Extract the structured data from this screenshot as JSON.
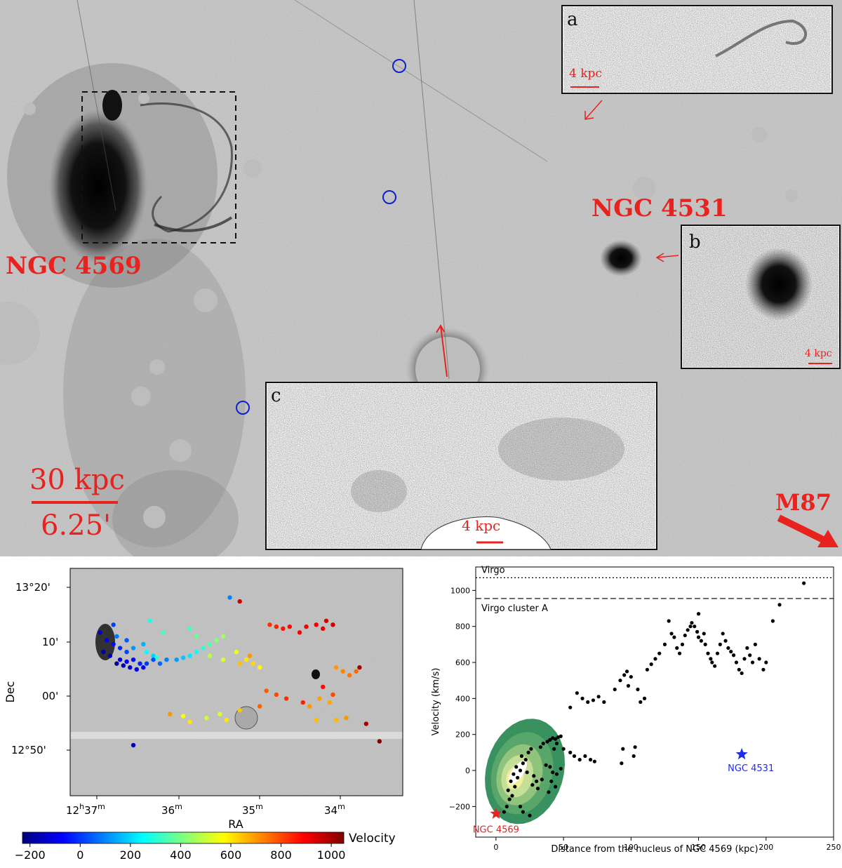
{
  "panel_top": {
    "galaxy_labels": [
      "NGC 4569",
      "NGC 4531"
    ],
    "scale_kpc": "30 kpc",
    "scale_arcmin": "6.25'",
    "direction_label": "M87",
    "inset_a": {
      "letter": "a",
      "scale": "4 kpc"
    },
    "inset_b": {
      "letter": "b",
      "scale": "4 kpc"
    },
    "inset_c": {
      "letter": "c",
      "scale": "4 kpc"
    }
  },
  "chart_data": [
    {
      "type": "scatter",
      "xlabel": "RA",
      "ylabel": "Dec",
      "xticks": [
        {
          "main": "12",
          "sup": "h",
          "sub": "37",
          "sup2": "m"
        },
        "36m",
        "35m",
        "34m"
      ],
      "yticks": [
        "13°20'",
        "10'",
        "00'",
        "12°50'"
      ],
      "colorbar": {
        "label": "Velocity",
        "ticks": [
          "−200",
          "0",
          "200",
          "400",
          "600",
          "800",
          "1000"
        ],
        "range": [
          -230,
          1050
        ]
      },
      "points": [
        [
          12.607,
          13.23,
          10
        ],
        [
          12.603,
          13.19,
          40
        ],
        [
          12.606,
          13.2,
          80
        ],
        [
          12.601,
          13.17,
          120
        ],
        [
          12.598,
          13.18,
          150
        ],
        [
          12.595,
          13.15,
          200
        ],
        [
          12.597,
          13.16,
          250
        ],
        [
          12.594,
          13.145,
          300
        ],
        [
          12.592,
          13.21,
          330
        ],
        [
          12.596,
          13.24,
          280
        ],
        [
          12.61,
          13.16,
          -180
        ],
        [
          12.608,
          13.15,
          -150
        ],
        [
          12.605,
          13.14,
          -120
        ],
        [
          12.603,
          13.135,
          -90
        ],
        [
          12.601,
          13.14,
          -60
        ],
        [
          12.599,
          13.13,
          -30
        ],
        [
          12.597,
          13.13,
          0
        ],
        [
          12.595,
          13.14,
          30
        ],
        [
          12.593,
          13.13,
          60
        ],
        [
          12.591,
          13.14,
          90
        ],
        [
          12.606,
          13.13,
          -200
        ],
        [
          12.604,
          13.125,
          -170
        ],
        [
          12.602,
          13.12,
          -140
        ],
        [
          12.6,
          13.115,
          -100
        ],
        [
          12.598,
          13.12,
          -70
        ],
        [
          12.611,
          13.21,
          -150
        ],
        [
          12.609,
          13.19,
          -100
        ],
        [
          12.607,
          13.18,
          -60
        ],
        [
          12.605,
          13.17,
          -20
        ],
        [
          12.603,
          13.16,
          20
        ],
        [
          12.588,
          13.14,
          130
        ],
        [
          12.586,
          13.145,
          180
        ],
        [
          12.584,
          13.15,
          230
        ],
        [
          12.582,
          13.16,
          260
        ],
        [
          12.58,
          13.17,
          300
        ],
        [
          12.578,
          13.18,
          350
        ],
        [
          12.576,
          13.19,
          420
        ],
        [
          12.574,
          13.2,
          450
        ],
        [
          12.578,
          13.15,
          480
        ],
        [
          12.574,
          13.14,
          520
        ],
        [
          12.582,
          13.2,
          380
        ],
        [
          12.584,
          13.22,
          330
        ],
        [
          12.57,
          13.16,
          550
        ],
        [
          12.567,
          13.14,
          600
        ],
        [
          12.569,
          13.13,
          650
        ],
        [
          12.566,
          13.15,
          700
        ],
        [
          12.572,
          13.3,
          100
        ],
        [
          12.569,
          13.29,
          950
        ],
        [
          12.565,
          13.13,
          620
        ],
        [
          12.563,
          13.12,
          580
        ],
        [
          12.56,
          13.23,
          830
        ],
        [
          12.558,
          13.225,
          850
        ],
        [
          12.556,
          13.22,
          870
        ],
        [
          12.554,
          13.225,
          880
        ],
        [
          12.551,
          13.21,
          890
        ],
        [
          12.549,
          13.225,
          900
        ],
        [
          12.546,
          13.23,
          910
        ],
        [
          12.544,
          13.22,
          930
        ],
        [
          12.543,
          13.24,
          940
        ],
        [
          12.541,
          13.23,
          960
        ],
        [
          12.54,
          13.12,
          700
        ],
        [
          12.538,
          13.11,
          720
        ],
        [
          12.536,
          13.1,
          740
        ],
        [
          12.534,
          13.11,
          760
        ],
        [
          12.533,
          13.12,
          1000
        ],
        [
          12.55,
          13.03,
          850
        ],
        [
          12.555,
          13.04,
          830
        ],
        [
          12.558,
          13.05,
          800
        ],
        [
          12.561,
          13.06,
          780
        ],
        [
          12.563,
          13.02,
          770
        ],
        [
          12.548,
          13.02,
          700
        ],
        [
          12.545,
          13.04,
          690
        ],
        [
          12.542,
          13.03,
          680
        ],
        [
          12.546,
          12.985,
          650
        ],
        [
          12.54,
          12.985,
          660
        ],
        [
          12.537,
          12.99,
          700
        ],
        [
          12.531,
          12.975,
          1000
        ],
        [
          12.527,
          12.93,
          1050
        ],
        [
          12.584,
          12.98,
          600
        ],
        [
          12.586,
          12.995,
          560
        ],
        [
          12.579,
          12.99,
          500
        ],
        [
          12.575,
          13.0,
          520
        ],
        [
          12.573,
          12.985,
          600
        ],
        [
          12.569,
          13.01,
          640
        ],
        [
          12.59,
          13.0,
          700
        ],
        [
          12.601,
          12.92,
          -150
        ],
        [
          12.544,
          13.07,
          880
        ],
        [
          12.541,
          13.05,
          800
        ]
      ]
    },
    {
      "type": "scatter",
      "xlabel": "Distance from the nucleus of NGC 4569 (kpc)",
      "ylabel": "Velocity (km/s)",
      "xlim": [
        -15,
        250
      ],
      "ylim": [
        -370,
        1130
      ],
      "xticks": [
        "0",
        "50",
        "100",
        "150",
        "200",
        "250"
      ],
      "yticks": [
        "−200",
        "0",
        "200",
        "400",
        "600",
        "800",
        "1000"
      ],
      "reference_lines": [
        {
          "label": "Virgo",
          "y": 1070,
          "style": "dotted"
        },
        {
          "label": "Virgo cluster A",
          "y": 955,
          "style": "dashed"
        }
      ],
      "markers": [
        {
          "label": "NGC 4569",
          "x": 0,
          "y": -240,
          "color": "#e8231f"
        },
        {
          "label": "NGC 4531",
          "x": 182,
          "y": 90,
          "color": "#1f2de8"
        }
      ],
      "points": [
        [
          6,
          -230
        ],
        [
          8,
          -200
        ],
        [
          10,
          -160
        ],
        [
          12,
          -140
        ],
        [
          9,
          -110
        ],
        [
          14,
          -90
        ],
        [
          11,
          -60
        ],
        [
          16,
          -40
        ],
        [
          13,
          -20
        ],
        [
          18,
          0
        ],
        [
          15,
          20
        ],
        [
          20,
          40
        ],
        [
          22,
          60
        ],
        [
          19,
          80
        ],
        [
          24,
          100
        ],
        [
          26,
          120
        ],
        [
          23,
          -10
        ],
        [
          28,
          -30
        ],
        [
          30,
          -60
        ],
        [
          27,
          -80
        ],
        [
          33,
          130
        ],
        [
          35,
          150
        ],
        [
          38,
          160
        ],
        [
          40,
          170
        ],
        [
          42,
          180
        ],
        [
          44,
          175
        ],
        [
          46,
          185
        ],
        [
          48,
          190
        ],
        [
          45,
          150
        ],
        [
          43,
          120
        ],
        [
          37,
          30
        ],
        [
          40,
          20
        ],
        [
          42,
          -10
        ],
        [
          45,
          -20
        ],
        [
          48,
          10
        ],
        [
          41,
          -60
        ],
        [
          44,
          -90
        ],
        [
          39,
          -120
        ],
        [
          31,
          -100
        ],
        [
          34,
          -50
        ],
        [
          20,
          -230
        ],
        [
          25,
          -250
        ],
        [
          18,
          -200
        ],
        [
          50,
          120
        ],
        [
          55,
          100
        ],
        [
          58,
          80
        ],
        [
          62,
          60
        ],
        [
          66,
          80
        ],
        [
          70,
          60
        ],
        [
          73,
          50
        ],
        [
          55,
          350
        ],
        [
          60,
          430
        ],
        [
          64,
          400
        ],
        [
          68,
          380
        ],
        [
          72,
          390
        ],
        [
          76,
          410
        ],
        [
          80,
          380
        ],
        [
          88,
          450
        ],
        [
          92,
          500
        ],
        [
          95,
          530
        ],
        [
          97,
          550
        ],
        [
          100,
          520
        ],
        [
          98,
          470
        ],
        [
          105,
          450
        ],
        [
          107,
          380
        ],
        [
          110,
          400
        ],
        [
          112,
          560
        ],
        [
          115,
          590
        ],
        [
          118,
          620
        ],
        [
          121,
          650
        ],
        [
          125,
          700
        ],
        [
          128,
          830
        ],
        [
          130,
          760
        ],
        [
          132,
          740
        ],
        [
          134,
          680
        ],
        [
          136,
          650
        ],
        [
          138,
          700
        ],
        [
          140,
          750
        ],
        [
          142,
          780
        ],
        [
          144,
          800
        ],
        [
          145,
          820
        ],
        [
          147,
          800
        ],
        [
          149,
          770
        ],
        [
          150,
          740
        ],
        [
          152,
          720
        ],
        [
          155,
          700
        ],
        [
          157,
          650
        ],
        [
          159,
          620
        ],
        [
          160,
          600
        ],
        [
          162,
          580
        ],
        [
          164,
          650
        ],
        [
          166,
          700
        ],
        [
          168,
          760
        ],
        [
          170,
          720
        ],
        [
          172,
          680
        ],
        [
          174,
          660
        ],
        [
          176,
          640
        ],
        [
          178,
          600
        ],
        [
          180,
          560
        ],
        [
          182,
          540
        ],
        [
          184,
          620
        ],
        [
          186,
          680
        ],
        [
          188,
          640
        ],
        [
          190,
          600
        ],
        [
          192,
          700
        ],
        [
          195,
          620
        ],
        [
          198,
          560
        ],
        [
          200,
          600
        ],
        [
          205,
          830
        ],
        [
          210,
          920
        ],
        [
          228,
          1040
        ],
        [
          93,
          40
        ],
        [
          94,
          120
        ],
        [
          102,
          80
        ],
        [
          103,
          130
        ],
        [
          150,
          870
        ],
        [
          154,
          760
        ]
      ]
    }
  ]
}
